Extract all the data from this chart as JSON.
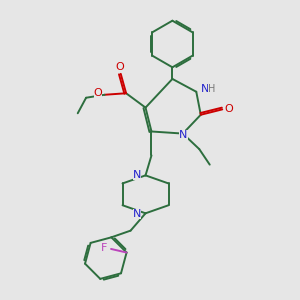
{
  "background_color": "#e6e6e6",
  "bond_color": "#2d6e3e",
  "nitrogen_color": "#2222cc",
  "oxygen_color": "#cc0000",
  "fluorine_color": "#bb44bb",
  "hydrogen_color": "#777777",
  "figsize": [
    3.0,
    3.0
  ],
  "dpi": 100,
  "xlim": [
    0,
    10
  ],
  "ylim": [
    0,
    10
  ]
}
